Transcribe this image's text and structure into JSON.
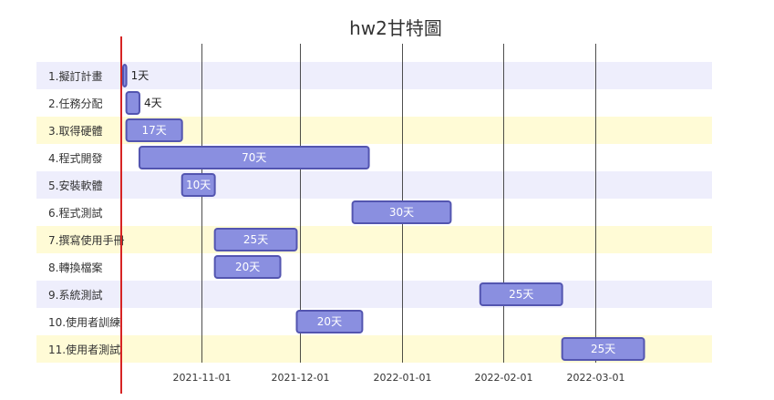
{
  "chart_data": {
    "type": "gantt",
    "title": "hw2甘特圖",
    "x_axis": {
      "ticks": [
        "2021-11-01",
        "2021-12-01",
        "2022-01-01",
        "2022-02-01",
        "2022-03-01"
      ],
      "range": [
        "2021-10-08",
        "2022-04-06"
      ]
    },
    "today_marker": "2021-10-08",
    "tasks": [
      {
        "label": "1.擬訂計畫",
        "start": "2021-10-08",
        "duration_days": 1,
        "duration_label": "1天"
      },
      {
        "label": "2.任務分配",
        "start": "2021-10-09",
        "duration_days": 4,
        "duration_label": "4天"
      },
      {
        "label": "3.取得硬體",
        "start": "2021-10-09",
        "duration_days": 17,
        "duration_label": "17天"
      },
      {
        "label": "4.程式開發",
        "start": "2021-10-13",
        "duration_days": 70,
        "duration_label": "70天"
      },
      {
        "label": "5.安裝軟體",
        "start": "2021-10-26",
        "duration_days": 10,
        "duration_label": "10天"
      },
      {
        "label": "6.程式測試",
        "start": "2021-12-17",
        "duration_days": 30,
        "duration_label": "30天"
      },
      {
        "label": "7.撰寫使用手冊",
        "start": "2021-11-05",
        "duration_days": 25,
        "duration_label": "25天"
      },
      {
        "label": "8.轉換檔案",
        "start": "2021-11-05",
        "duration_days": 20,
        "duration_label": "20天"
      },
      {
        "label": "9.系統測試",
        "start": "2022-01-25",
        "duration_days": 25,
        "duration_label": "25天"
      },
      {
        "label": "10.使用者訓練",
        "start": "2021-11-30",
        "duration_days": 20,
        "duration_label": "20天"
      },
      {
        "label": "11.使用者測試",
        "start": "2022-02-19",
        "duration_days": 25,
        "duration_label": "25天"
      }
    ],
    "row_colors": [
      "#eeeefc",
      "#ffffff",
      "#fffbd6",
      "#ffffff"
    ],
    "bar_fill": "#8a8fe0",
    "bar_stroke": "#5355b0",
    "grid": true,
    "today_color": "#d62424"
  }
}
